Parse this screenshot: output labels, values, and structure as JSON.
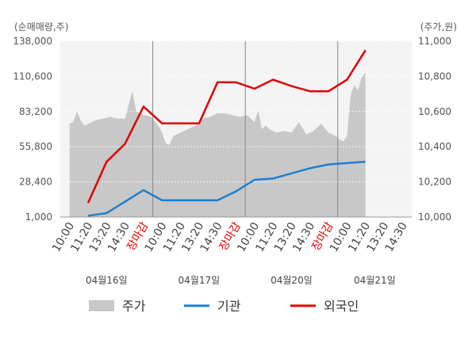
{
  "chart_data": {
    "type": "line",
    "left_axis_label": "(순매매량,주)",
    "right_axis_label": "(주가,원)",
    "left_ticks": [
      "138,000",
      "110,600",
      "83,200",
      "55,800",
      "28,400",
      "1,000"
    ],
    "left_tick_values": [
      138000,
      110600,
      83200,
      55800,
      28400,
      1000
    ],
    "right_ticks": [
      "11,000",
      "10,800",
      "10,600",
      "10,400",
      "10,200",
      "10,000"
    ],
    "right_tick_values": [
      11000,
      10800,
      10600,
      10400,
      10200,
      10000
    ],
    "left_ylim": [
      1000,
      138000
    ],
    "right_ylim": [
      10000,
      11000
    ],
    "x_ticks": [
      "10:00",
      "11:20",
      "13:20",
      "14:30",
      "장마감",
      "10:00",
      "11:20",
      "13:20",
      "14:30",
      "장마감",
      "10:00",
      "11:20",
      "13:20",
      "14:30",
      "장마감",
      "10:00",
      "11:20",
      "13:20",
      "14:30"
    ],
    "dates": [
      "04월16일",
      "04월17일",
      "04월20일",
      "04월21일"
    ],
    "grid": true,
    "legend": {
      "position": "bottom",
      "items": [
        {
          "label": "주가",
          "color": "#c8c8c8"
        },
        {
          "label": "기관",
          "color": "#1e7fd0"
        },
        {
          "label": "외국인",
          "color": "#e00000"
        }
      ]
    },
    "series": [
      {
        "name": "외국인",
        "color": "#e00000",
        "axis": "left",
        "points": [
          [
            1,
            12000
          ],
          [
            2,
            44000
          ],
          [
            3,
            58000
          ],
          [
            4,
            87000
          ],
          [
            5,
            74000
          ],
          [
            6,
            74000
          ],
          [
            7,
            74000
          ],
          [
            8,
            106000
          ],
          [
            9,
            106000
          ],
          [
            10,
            101000
          ],
          [
            11,
            108000
          ],
          [
            12,
            103000
          ],
          [
            13,
            99000
          ],
          [
            14,
            99000
          ],
          [
            15,
            108000
          ],
          [
            16,
            131000
          ]
        ]
      },
      {
        "name": "기관",
        "color": "#1e7fd0",
        "axis": "left",
        "points": [
          [
            1,
            2000
          ],
          [
            2,
            4000
          ],
          [
            3,
            13000
          ],
          [
            4,
            22000
          ],
          [
            5,
            14000
          ],
          [
            6,
            14000
          ],
          [
            7,
            14000
          ],
          [
            8,
            14000
          ],
          [
            9,
            21000
          ],
          [
            10,
            30000
          ],
          [
            11,
            31000
          ],
          [
            12,
            35000
          ],
          [
            13,
            39000
          ],
          [
            14,
            42000
          ],
          [
            15,
            43000
          ],
          [
            16,
            44000
          ]
        ]
      },
      {
        "name": "주가",
        "color": "#c8c8c8",
        "axis": "right",
        "points": [
          [
            0,
            10530
          ],
          [
            0.2,
            10540
          ],
          [
            0.4,
            10600
          ],
          [
            0.6,
            10550
          ],
          [
            0.8,
            10520
          ],
          [
            1,
            10530
          ],
          [
            1.4,
            10550
          ],
          [
            1.8,
            10560
          ],
          [
            2.2,
            10570
          ],
          [
            2.6,
            10560
          ],
          [
            3,
            10560
          ],
          [
            3.2,
            10640
          ],
          [
            3.4,
            10720
          ],
          [
            3.6,
            10600
          ],
          [
            4,
            10580
          ],
          [
            4.4,
            10570
          ],
          [
            4.8,
            10520
          ],
          [
            5,
            10480
          ],
          [
            5.2,
            10420
          ],
          [
            5.4,
            10410
          ],
          [
            5.6,
            10460
          ],
          [
            6,
            10480
          ],
          [
            6.4,
            10500
          ],
          [
            6.8,
            10520
          ],
          [
            7.2,
            10560
          ],
          [
            7.6,
            10570
          ],
          [
            8,
            10590
          ],
          [
            8.4,
            10590
          ],
          [
            8.8,
            10580
          ],
          [
            9.2,
            10570
          ],
          [
            9.6,
            10580
          ],
          [
            10,
            10540
          ],
          [
            10.2,
            10610
          ],
          [
            10.4,
            10500
          ],
          [
            10.6,
            10520
          ],
          [
            10.8,
            10500
          ],
          [
            11.2,
            10480
          ],
          [
            11.6,
            10490
          ],
          [
            12,
            10480
          ],
          [
            12.4,
            10540
          ],
          [
            12.8,
            10470
          ],
          [
            13.2,
            10490
          ],
          [
            13.6,
            10530
          ],
          [
            14,
            10480
          ],
          [
            14.4,
            10460
          ],
          [
            14.6,
            10440
          ],
          [
            14.8,
            10430
          ],
          [
            15,
            10460
          ],
          [
            15.2,
            10700
          ],
          [
            15.4,
            10750
          ],
          [
            15.6,
            10720
          ],
          [
            15.8,
            10800
          ],
          [
            16,
            10820
          ]
        ]
      }
    ]
  }
}
